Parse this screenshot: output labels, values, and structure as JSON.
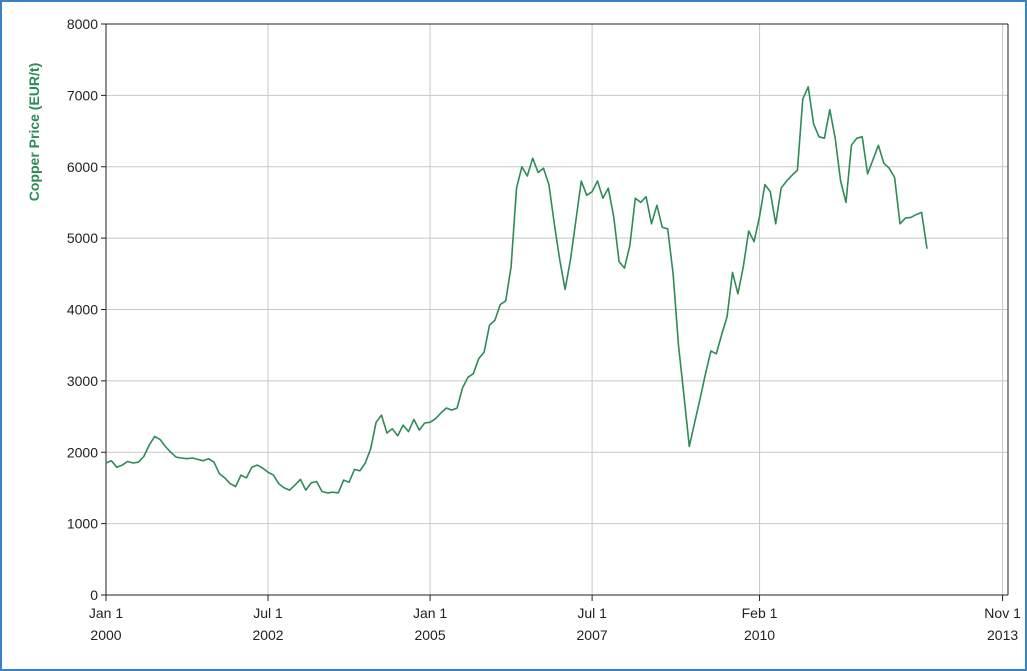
{
  "colors": {
    "line": "#2e8b57",
    "ylabel": "#2e8b57",
    "grid": "#c8c8c8",
    "axis": "#222222",
    "frame": "#3b82c4"
  },
  "chart_data": {
    "type": "line",
    "title": "",
    "xlabel": "",
    "ylabel": "Copper Price (EUR/t)",
    "ylim": [
      0,
      8000
    ],
    "xlim": [
      "2000-01",
      "2013-12"
    ],
    "grid": true,
    "legend": "none",
    "y_ticks": [
      0,
      1000,
      2000,
      3000,
      4000,
      5000,
      6000,
      7000,
      8000
    ],
    "y_tick_labels": [
      "0",
      "1000",
      "2000",
      "3000",
      "4000",
      "5000",
      "6000",
      "7000",
      "8000"
    ],
    "x_ticks": [
      {
        "date": "2000-01",
        "line1": "Jan 1",
        "line2": "2000"
      },
      {
        "date": "2002-07",
        "line1": "Jul 1",
        "line2": "2002"
      },
      {
        "date": "2005-01",
        "line1": "Jan 1",
        "line2": "2005"
      },
      {
        "date": "2007-07",
        "line1": "Jul 1",
        "line2": "2007"
      },
      {
        "date": "2010-02",
        "line1": "Feb 1",
        "line2": "2010"
      },
      {
        "date": "2013-11",
        "line1": "Nov 1",
        "line2": "2013"
      }
    ],
    "series": [
      {
        "points": [
          [
            "2000-01",
            1850
          ],
          [
            "2000-02",
            1880
          ],
          [
            "2000-03",
            1790
          ],
          [
            "2000-04",
            1820
          ],
          [
            "2000-05",
            1870
          ],
          [
            "2000-06",
            1850
          ],
          [
            "2000-07",
            1860
          ],
          [
            "2000-08",
            1940
          ],
          [
            "2000-09",
            2100
          ],
          [
            "2000-10",
            2220
          ],
          [
            "2000-11",
            2180
          ],
          [
            "2000-12",
            2080
          ],
          [
            "2001-01",
            2000
          ],
          [
            "2001-02",
            1930
          ],
          [
            "2001-03",
            1920
          ],
          [
            "2001-04",
            1910
          ],
          [
            "2001-05",
            1920
          ],
          [
            "2001-06",
            1900
          ],
          [
            "2001-07",
            1880
          ],
          [
            "2001-08",
            1910
          ],
          [
            "2001-09",
            1860
          ],
          [
            "2001-10",
            1700
          ],
          [
            "2001-11",
            1640
          ],
          [
            "2001-12",
            1560
          ],
          [
            "2002-01",
            1520
          ],
          [
            "2002-02",
            1680
          ],
          [
            "2002-03",
            1640
          ],
          [
            "2002-04",
            1790
          ],
          [
            "2002-05",
            1820
          ],
          [
            "2002-06",
            1780
          ],
          [
            "2002-07",
            1720
          ],
          [
            "2002-08",
            1680
          ],
          [
            "2002-09",
            1560
          ],
          [
            "2002-10",
            1500
          ],
          [
            "2002-11",
            1470
          ],
          [
            "2002-12",
            1540
          ],
          [
            "2003-01",
            1620
          ],
          [
            "2003-02",
            1470
          ],
          [
            "2003-03",
            1570
          ],
          [
            "2003-04",
            1590
          ],
          [
            "2003-05",
            1450
          ],
          [
            "2003-06",
            1430
          ],
          [
            "2003-07",
            1440
          ],
          [
            "2003-08",
            1430
          ],
          [
            "2003-09",
            1610
          ],
          [
            "2003-10",
            1580
          ],
          [
            "2003-11",
            1760
          ],
          [
            "2003-12",
            1740
          ],
          [
            "2004-01",
            1850
          ],
          [
            "2004-02",
            2050
          ],
          [
            "2004-03",
            2420
          ],
          [
            "2004-04",
            2520
          ],
          [
            "2004-05",
            2270
          ],
          [
            "2004-06",
            2330
          ],
          [
            "2004-07",
            2230
          ],
          [
            "2004-08",
            2380
          ],
          [
            "2004-09",
            2290
          ],
          [
            "2004-10",
            2460
          ],
          [
            "2004-11",
            2310
          ],
          [
            "2004-12",
            2410
          ],
          [
            "2005-01",
            2420
          ],
          [
            "2005-02",
            2470
          ],
          [
            "2005-03",
            2550
          ],
          [
            "2005-04",
            2620
          ],
          [
            "2005-05",
            2590
          ],
          [
            "2005-06",
            2620
          ],
          [
            "2005-07",
            2900
          ],
          [
            "2005-08",
            3050
          ],
          [
            "2005-09",
            3100
          ],
          [
            "2005-10",
            3310
          ],
          [
            "2005-11",
            3400
          ],
          [
            "2005-12",
            3780
          ],
          [
            "2006-01",
            3850
          ],
          [
            "2006-02",
            4070
          ],
          [
            "2006-03",
            4120
          ],
          [
            "2006-04",
            4600
          ],
          [
            "2006-05",
            5700
          ],
          [
            "2006-06",
            6000
          ],
          [
            "2006-07",
            5870
          ],
          [
            "2006-08",
            6120
          ],
          [
            "2006-09",
            5920
          ],
          [
            "2006-10",
            5980
          ],
          [
            "2006-11",
            5750
          ],
          [
            "2006-12",
            5200
          ],
          [
            "2007-01",
            4700
          ],
          [
            "2007-02",
            4280
          ],
          [
            "2007-03",
            4700
          ],
          [
            "2007-04",
            5250
          ],
          [
            "2007-05",
            5800
          ],
          [
            "2007-06",
            5600
          ],
          [
            "2007-07",
            5650
          ],
          [
            "2007-08",
            5800
          ],
          [
            "2007-09",
            5560
          ],
          [
            "2007-10",
            5700
          ],
          [
            "2007-11",
            5300
          ],
          [
            "2007-12",
            4670
          ],
          [
            "2008-01",
            4580
          ],
          [
            "2008-02",
            4900
          ],
          [
            "2008-03",
            5560
          ],
          [
            "2008-04",
            5500
          ],
          [
            "2008-05",
            5580
          ],
          [
            "2008-06",
            5200
          ],
          [
            "2008-07",
            5460
          ],
          [
            "2008-08",
            5150
          ],
          [
            "2008-09",
            5130
          ],
          [
            "2008-10",
            4500
          ],
          [
            "2008-11",
            3500
          ],
          [
            "2008-12",
            2800
          ],
          [
            "2009-01",
            2080
          ],
          [
            "2009-02",
            2420
          ],
          [
            "2009-03",
            2750
          ],
          [
            "2009-04",
            3100
          ],
          [
            "2009-05",
            3420
          ],
          [
            "2009-06",
            3380
          ],
          [
            "2009-07",
            3650
          ],
          [
            "2009-08",
            3900
          ],
          [
            "2009-09",
            4520
          ],
          [
            "2009-10",
            4220
          ],
          [
            "2009-11",
            4600
          ],
          [
            "2009-12",
            5100
          ],
          [
            "2010-01",
            4950
          ],
          [
            "2010-02",
            5300
          ],
          [
            "2010-03",
            5750
          ],
          [
            "2010-04",
            5650
          ],
          [
            "2010-05",
            5200
          ],
          [
            "2010-06",
            5700
          ],
          [
            "2010-07",
            5800
          ],
          [
            "2010-08",
            5880
          ],
          [
            "2010-09",
            5950
          ],
          [
            "2010-10",
            6950
          ],
          [
            "2010-11",
            7120
          ],
          [
            "2010-12",
            6600
          ],
          [
            "2011-01",
            6420
          ],
          [
            "2011-02",
            6400
          ],
          [
            "2011-03",
            6800
          ],
          [
            "2011-04",
            6400
          ],
          [
            "2011-05",
            5800
          ],
          [
            "2011-06",
            5500
          ],
          [
            "2011-07",
            6300
          ],
          [
            "2011-08",
            6400
          ],
          [
            "2011-09",
            6420
          ],
          [
            "2011-10",
            5900
          ],
          [
            "2011-11",
            6100
          ],
          [
            "2011-12",
            6300
          ],
          [
            "2012-01",
            6050
          ],
          [
            "2012-02",
            5980
          ],
          [
            "2012-03",
            5850
          ],
          [
            "2012-04",
            5200
          ],
          [
            "2012-05",
            5280
          ],
          [
            "2012-06",
            5290
          ],
          [
            "2012-07",
            5330
          ],
          [
            "2012-08",
            5360
          ],
          [
            "2012-09",
            4850
          ]
        ]
      }
    ]
  }
}
